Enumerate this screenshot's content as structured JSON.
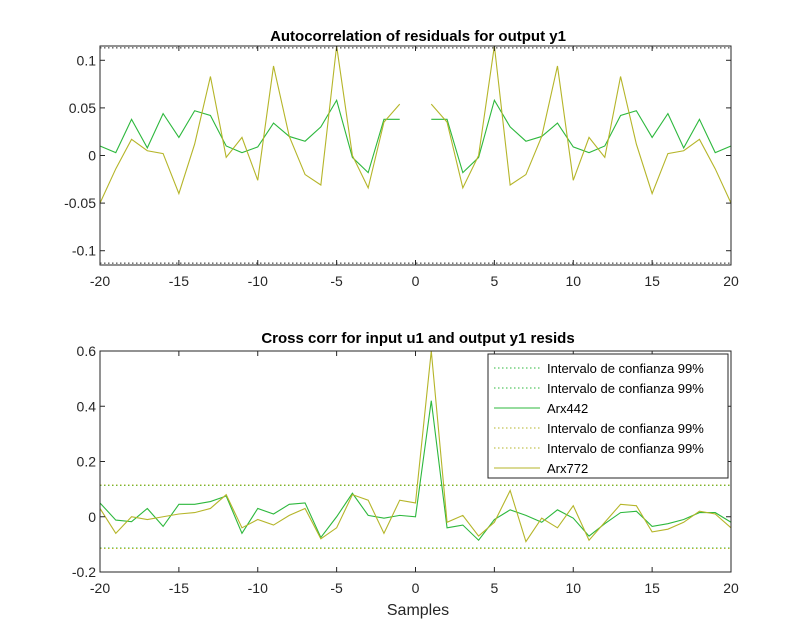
{
  "colors": {
    "arx442": "#2db83d",
    "arx772": "#b5b529",
    "axis": "#262626"
  },
  "chart_data": [
    {
      "type": "line",
      "title": "Autocorrelation of residuals for output y1",
      "xlabel": "",
      "ylabel": "",
      "xlim": [
        -20,
        20
      ],
      "ylim": [
        -0.115,
        0.115
      ],
      "xticks": [
        -20,
        -15,
        -10,
        -5,
        0,
        5,
        10,
        15,
        20
      ],
      "xtick_labels": [
        "-20",
        "-15",
        "-10",
        "-5",
        "0",
        "5",
        "10",
        "15",
        "20"
      ],
      "yticks": [
        0.1,
        0.05,
        0,
        -0.05,
        -0.1
      ],
      "ytick_labels": [
        "0.1",
        "0.05",
        "0",
        "-0.05",
        "-0.1"
      ],
      "confidence_band": {
        "upper": 0.113,
        "lower": -0.113
      },
      "legend": "none",
      "series": [
        {
          "color": "#2db83d",
          "x": [
            -20,
            -19,
            -18,
            -17,
            -16,
            -15,
            -14,
            -13,
            -12,
            -11,
            -10,
            -9,
            -8,
            -7,
            -6,
            -5,
            -4,
            -3,
            -2,
            -1,
            null,
            1,
            2,
            3,
            4,
            5,
            6,
            7,
            8,
            9,
            10,
            11,
            12,
            13,
            14,
            15,
            16,
            17,
            18,
            19,
            20
          ],
          "y": [
            0.01,
            0.003,
            0.038,
            0.008,
            0.044,
            0.019,
            0.047,
            0.042,
            0.01,
            0.003,
            0.009,
            0.034,
            0.02,
            0.015,
            0.03,
            0.058,
            -0.002,
            -0.018,
            0.038,
            0.038,
            null,
            0.038,
            0.038,
            -0.018,
            -0.002,
            0.058,
            0.03,
            0.015,
            0.02,
            0.034,
            0.009,
            0.003,
            0.01,
            0.042,
            0.047,
            0.019,
            0.044,
            0.008,
            0.038,
            0.003,
            0.01
          ]
        },
        {
          "color": "#b5b529",
          "x": [
            -20,
            -19,
            -18,
            -17,
            -16,
            -15,
            -14,
            -13,
            -12,
            -11,
            -10,
            -9,
            -8,
            -7,
            -6,
            -5,
            -4,
            -3,
            -2,
            -1,
            null,
            1,
            2,
            3,
            4,
            5,
            6,
            7,
            8,
            9,
            10,
            11,
            12,
            13,
            14,
            15,
            16,
            17,
            18,
            19,
            20
          ],
          "y": [
            -0.05,
            -0.014,
            0.017,
            0.005,
            0.002,
            -0.04,
            0.012,
            0.083,
            -0.002,
            0.019,
            -0.026,
            0.094,
            0.02,
            -0.02,
            -0.031,
            0.115,
            0.0,
            -0.034,
            0.035,
            0.054,
            null,
            0.054,
            0.035,
            -0.034,
            0.0,
            0.115,
            -0.031,
            -0.02,
            0.02,
            0.094,
            -0.026,
            0.019,
            -0.002,
            0.083,
            0.012,
            -0.04,
            0.002,
            0.005,
            0.017,
            -0.014,
            -0.05
          ]
        }
      ]
    },
    {
      "type": "line",
      "title": "Cross corr for input u1 and output y1 resids",
      "xlabel": "Samples",
      "ylabel": "",
      "xlim": [
        -20,
        20
      ],
      "ylim": [
        -0.2,
        0.6
      ],
      "xticks": [
        -20,
        -15,
        -10,
        -5,
        0,
        5,
        10,
        15,
        20
      ],
      "xtick_labels": [
        "-20",
        "-15",
        "-10",
        "-5",
        "0",
        "5",
        "10",
        "15",
        "20"
      ],
      "yticks": [
        0.6,
        0.4,
        0.2,
        0,
        -0.2
      ],
      "ytick_labels": [
        "0.6",
        "0.4",
        "0.2",
        "0",
        "-0.2"
      ],
      "legend": "top-right",
      "legend_entries": [
        {
          "label": "Intervalo de confianza 99%",
          "color": "#2db83d",
          "style": "dotted"
        },
        {
          "label": "Intervalo de confianza 99%",
          "color": "#2db83d",
          "style": "dotted"
        },
        {
          "label": "Arx442",
          "color": "#2db83d",
          "style": "solid"
        },
        {
          "label": "Intervalo de confianza 99%",
          "color": "#b5b529",
          "style": "dotted"
        },
        {
          "label": "Intervalo de confianza 99%",
          "color": "#b5b529",
          "style": "dotted"
        },
        {
          "label": "Arx772",
          "color": "#b5b529",
          "style": "solid"
        }
      ],
      "confidence_bands": [
        {
          "color": "#2db83d",
          "upper": 0.113,
          "lower": -0.113
        },
        {
          "color": "#b5b529",
          "upper": 0.115,
          "lower": -0.115
        }
      ],
      "series": [
        {
          "name": "Arx442",
          "color": "#2db83d",
          "x": [
            -20,
            -19,
            -18,
            -17,
            -16,
            -15,
            -14,
            -13,
            -12,
            -11,
            -10,
            -9,
            -8,
            -7,
            -6,
            -5,
            -4,
            -3,
            -2,
            -1,
            0,
            1,
            2,
            3,
            4,
            5,
            6,
            7,
            8,
            9,
            10,
            11,
            12,
            13,
            14,
            15,
            16,
            17,
            18,
            19,
            20
          ],
          "y": [
            0.05,
            -0.012,
            -0.018,
            0.03,
            -0.035,
            0.045,
            0.045,
            0.055,
            0.075,
            -0.06,
            0.03,
            0.01,
            0.045,
            0.05,
            -0.075,
            0.0,
            0.085,
            0.005,
            -0.005,
            0.005,
            0.0,
            0.42,
            -0.04,
            -0.03,
            -0.085,
            -0.01,
            0.025,
            0.005,
            -0.02,
            0.025,
            -0.005,
            -0.07,
            -0.025,
            0.015,
            0.02,
            -0.035,
            -0.025,
            -0.01,
            0.015,
            0.015,
            -0.02
          ]
        },
        {
          "name": "Arx772",
          "color": "#b5b529",
          "x": [
            -20,
            -19,
            -18,
            -17,
            -16,
            -15,
            -14,
            -13,
            -12,
            -11,
            -10,
            -9,
            -8,
            -7,
            -6,
            -5,
            -4,
            -3,
            -2,
            -1,
            0,
            1,
            2,
            3,
            4,
            5,
            6,
            7,
            8,
            9,
            10,
            11,
            12,
            13,
            14,
            15,
            16,
            17,
            18,
            19,
            20
          ],
          "y": [
            0.03,
            -0.06,
            0.0,
            -0.01,
            0.0,
            0.01,
            0.015,
            0.03,
            0.08,
            -0.04,
            -0.01,
            -0.03,
            0.005,
            0.03,
            -0.08,
            -0.04,
            0.08,
            0.06,
            -0.06,
            0.06,
            0.05,
            0.6,
            -0.02,
            0.005,
            -0.07,
            -0.02,
            0.095,
            -0.09,
            -0.005,
            -0.04,
            0.04,
            -0.085,
            -0.02,
            0.045,
            0.04,
            -0.055,
            -0.045,
            -0.02,
            0.02,
            0.01,
            -0.04
          ]
        }
      ]
    }
  ]
}
